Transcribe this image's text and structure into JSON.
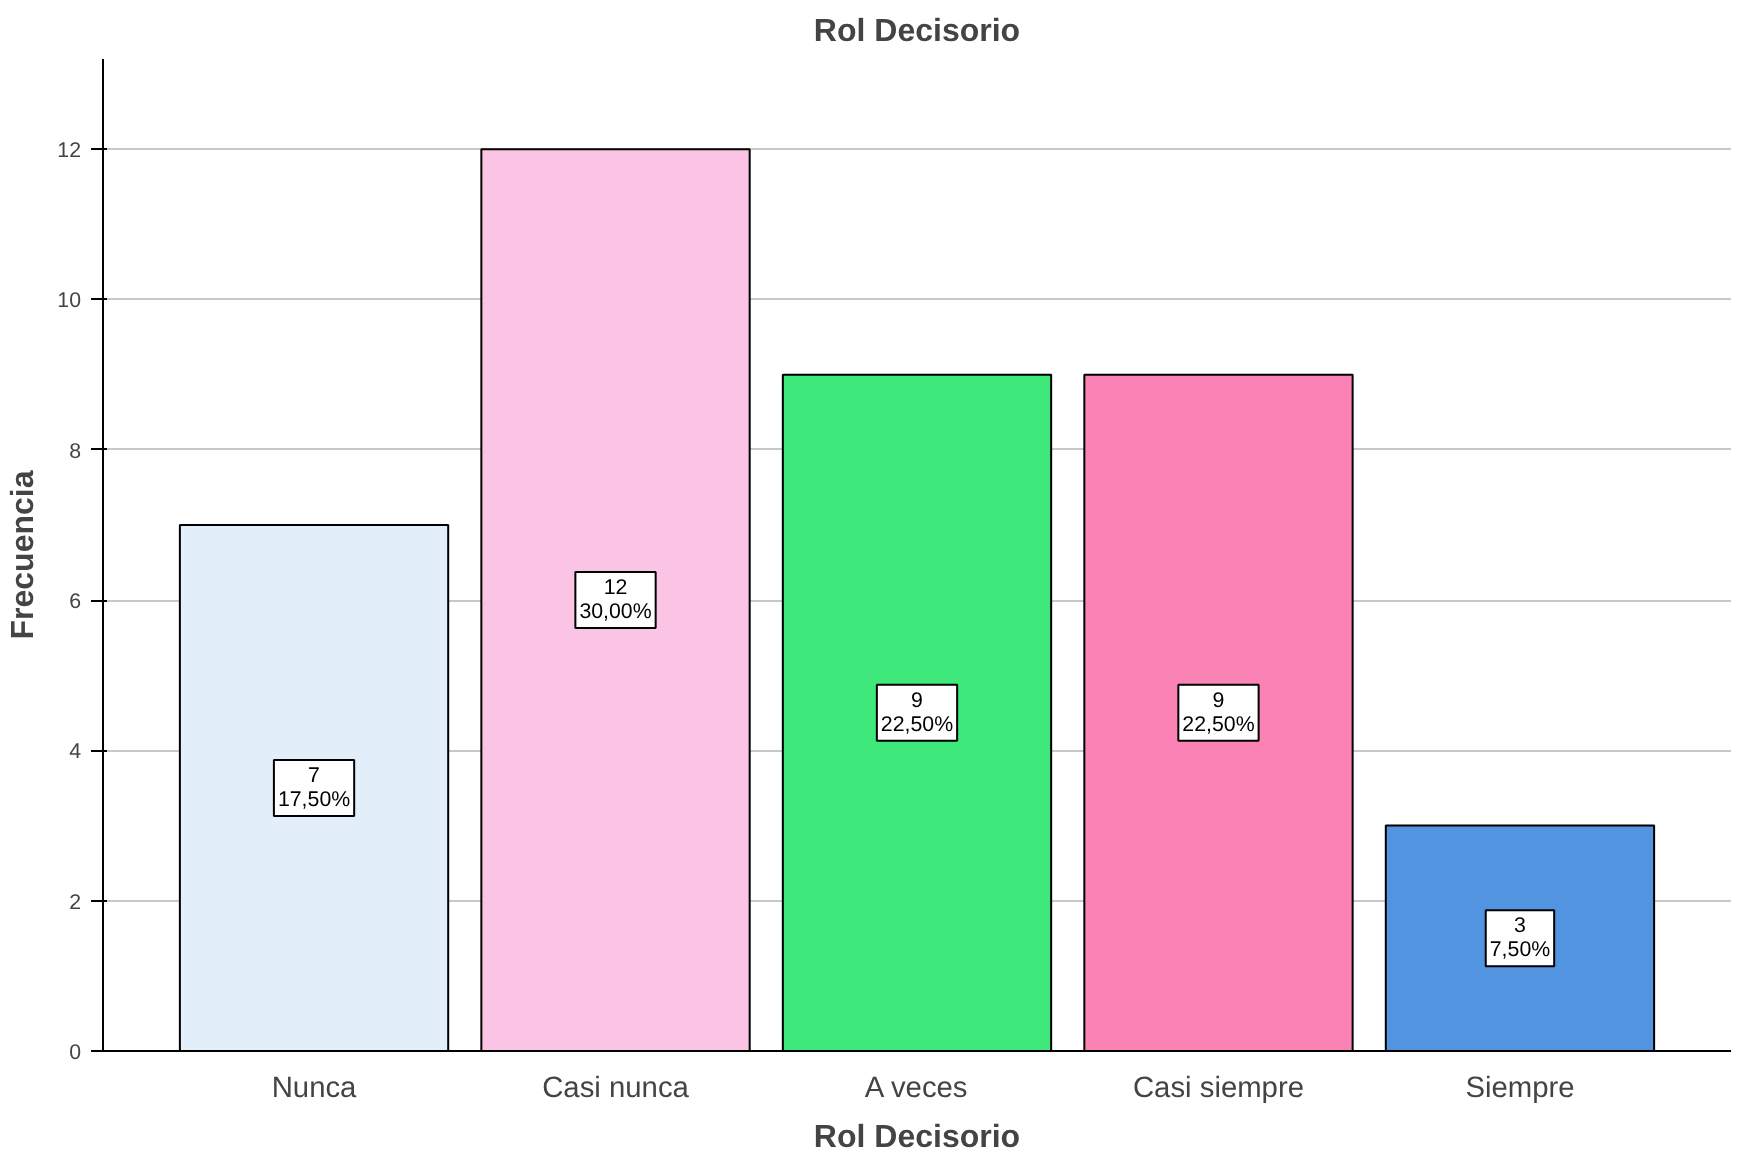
{
  "chart_data": {
    "type": "bar",
    "title": "Rol Decisorio",
    "xlabel": "Rol Decisorio",
    "ylabel": "Frecuencia",
    "categories": [
      "Nunca",
      "Casi nunca",
      "A veces",
      "Casi siempre",
      "Siempre"
    ],
    "values": [
      7,
      12,
      9,
      9,
      3
    ],
    "colors": [
      "#e3eefb",
      "#fcc4e4",
      "#3ee87a",
      "#fb82b4",
      "#5394e0"
    ],
    "value_labels": [
      "7\n17,50%",
      "12\n30,00%",
      "9\n22,50%",
      "9\n22,50%",
      "3\n7,50%"
    ],
    "ylim": [
      0,
      13.2
    ],
    "yticks": [
      0,
      2,
      4,
      6,
      8,
      10,
      12
    ],
    "grid": "y"
  }
}
